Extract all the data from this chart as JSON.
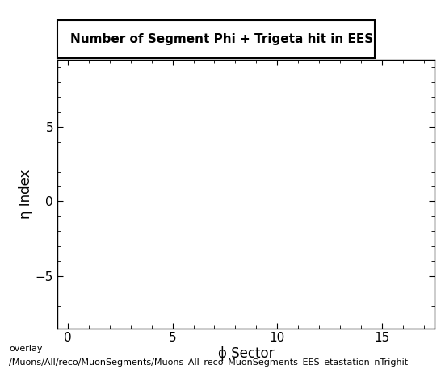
{
  "title": "Number of Segment Phi + Trigeta hit in EES",
  "xlabel": "ϕ Sector",
  "ylabel": "η Index",
  "xlim": [
    -0.5,
    17.5
  ],
  "ylim": [
    -8.5,
    9.5
  ],
  "xticks": [
    0,
    5,
    10,
    15
  ],
  "yticks": [
    -5,
    0,
    5
  ],
  "background_color": "#ffffff",
  "plot_bg_color": "#ffffff",
  "caption_line1": "overlay",
  "caption_line2": "/Muons/All/reco/MuonSegments/Muons_All_reco_MuonSegments_EES_etastation_nTrighit",
  "title_fontsize": 11,
  "axis_label_fontsize": 12,
  "tick_fontsize": 11,
  "caption_fontsize": 8
}
